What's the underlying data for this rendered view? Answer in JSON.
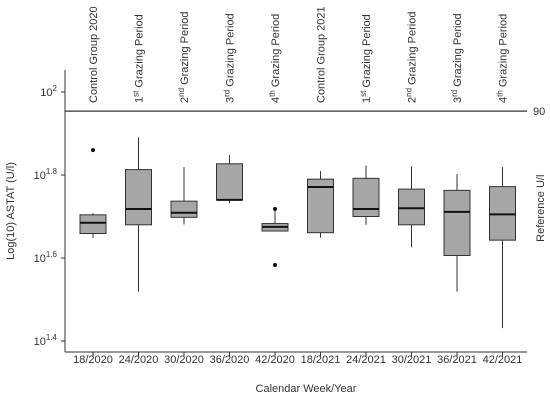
{
  "chart_data": {
    "type": "box",
    "categories": [
      "18/2020",
      "24/2020",
      "30/2020",
      "36/2020",
      "42/2020",
      "18/2021",
      "24/2021",
      "30/2021",
      "36/2021",
      "42/2021"
    ],
    "group_labels": [
      {
        "prefix": "Control Group 2020",
        "sup": "",
        "suffix": ""
      },
      {
        "prefix": "1",
        "sup": "st",
        "suffix": " Grazing Period"
      },
      {
        "prefix": "2",
        "sup": "nd",
        "suffix": " Grazing Period"
      },
      {
        "prefix": "3",
        "sup": "rd",
        "suffix": " Grazing Period"
      },
      {
        "prefix": "4",
        "sup": "th",
        "suffix": " Grazing Period"
      },
      {
        "prefix": "Control Group 2021",
        "sup": "",
        "suffix": ""
      },
      {
        "prefix": "1",
        "sup": "st",
        "suffix": " Grazing Period"
      },
      {
        "prefix": "2",
        "sup": "nd",
        "suffix": " Grazing Period"
      },
      {
        "prefix": "3",
        "sup": "rd",
        "suffix": " Grazing Period"
      },
      {
        "prefix": "4",
        "sup": "th",
        "suffix": " Grazing Period"
      }
    ],
    "boxes": [
      {
        "min": 1.648,
        "q1": 1.659,
        "median": 1.685,
        "q3": 1.704,
        "max": 1.708,
        "outliers": [
          1.86
        ]
      },
      {
        "min": 1.519,
        "q1": 1.68,
        "median": 1.718,
        "q3": 1.813,
        "max": 1.891,
        "outliers": []
      },
      {
        "min": 1.681,
        "q1": 1.698,
        "median": 1.709,
        "q3": 1.737,
        "max": 1.819,
        "outliers": []
      },
      {
        "min": 1.732,
        "q1": 1.74,
        "median": 1.74,
        "q3": 1.827,
        "max": 1.848,
        "outliers": []
      },
      {
        "min": 1.665,
        "q1": 1.665,
        "median": 1.675,
        "q3": 1.683,
        "max": 1.718,
        "outliers": [
          1.718,
          1.583
        ]
      },
      {
        "min": 1.649,
        "q1": 1.661,
        "median": 1.771,
        "q3": 1.79,
        "max": 1.81,
        "outliers": []
      },
      {
        "min": 1.68,
        "q1": 1.7,
        "median": 1.718,
        "q3": 1.792,
        "max": 1.823,
        "outliers": []
      },
      {
        "min": 1.626,
        "q1": 1.68,
        "median": 1.72,
        "q3": 1.766,
        "max": 1.821,
        "outliers": []
      },
      {
        "min": 1.519,
        "q1": 1.606,
        "median": 1.711,
        "q3": 1.763,
        "max": 1.802,
        "outliers": []
      },
      {
        "min": 1.431,
        "q1": 1.643,
        "median": 1.705,
        "q3": 1.772,
        "max": 1.819,
        "outliers": []
      }
    ],
    "ylabel": "Log(10) ASTAT (U/l)",
    "xlabel": "Calendar Week/Year",
    "y_ticks": [
      {
        "value": 2.0,
        "base": "10",
        "exp": "2"
      },
      {
        "value": 1.8,
        "base": "10",
        "exp": "1.8"
      },
      {
        "value": 1.6,
        "base": "10",
        "exp": "1.6"
      },
      {
        "value": 1.4,
        "base": "10",
        "exp": "1.4"
      }
    ],
    "ylim": [
      1.4,
      2.05
    ],
    "reference_line": {
      "value": 1.954,
      "label": "90",
      "axis_label": "Reference U/l"
    },
    "grid": false,
    "box_color": "#a6a6a6",
    "line_color": "#333333"
  }
}
